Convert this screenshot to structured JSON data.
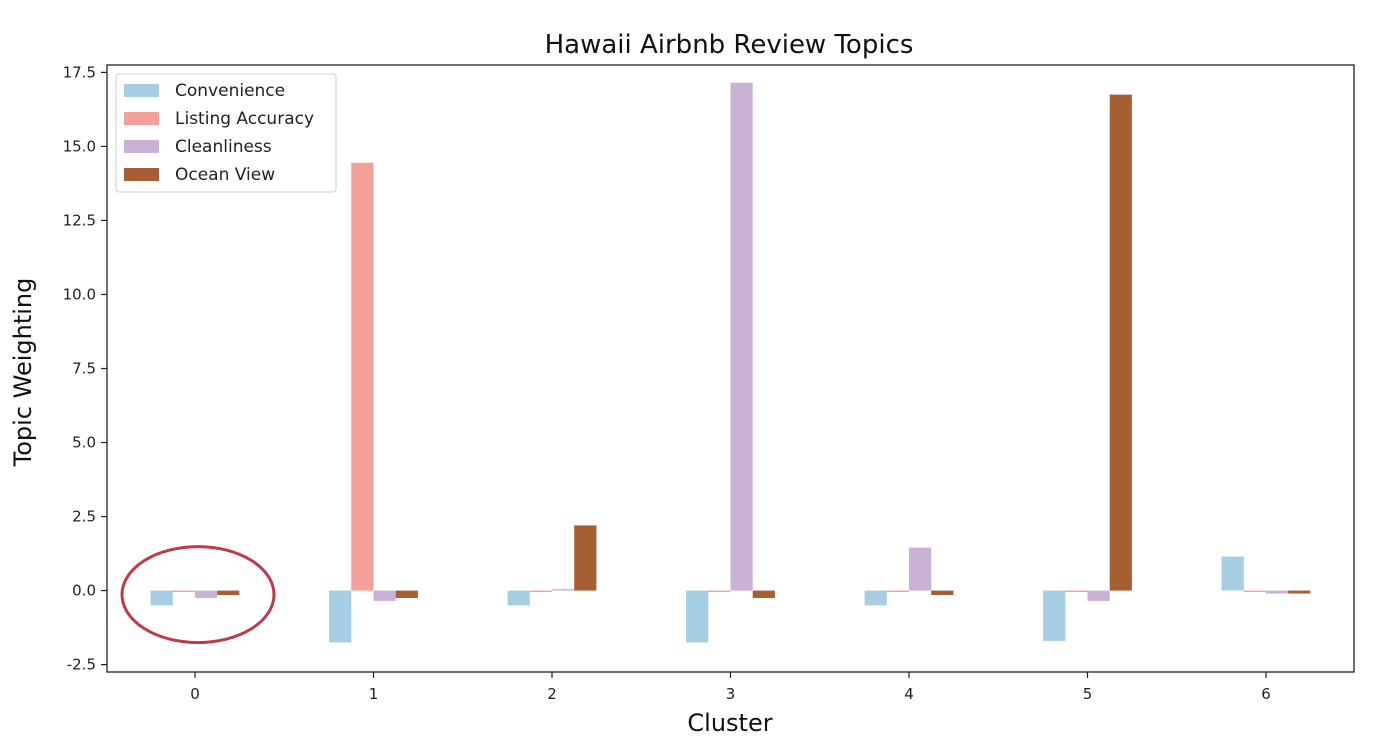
{
  "chart_data": {
    "type": "bar",
    "title": "Hawaii Airbnb Review Topics",
    "xlabel": "Cluster",
    "ylabel": "Topic Weighting",
    "categories": [
      "0",
      "1",
      "2",
      "3",
      "4",
      "5",
      "6"
    ],
    "series": [
      {
        "name": "Convenience",
        "color": "#a6cee3",
        "values": [
          -0.5,
          -1.75,
          -0.5,
          -1.75,
          -0.5,
          -1.7,
          1.15
        ]
      },
      {
        "name": "Listing Accuracy",
        "color": "#f4a09a",
        "values": [
          -0.05,
          14.45,
          -0.05,
          -0.05,
          -0.05,
          -0.05,
          -0.05
        ]
      },
      {
        "name": "Cleanliness",
        "color": "#cab2d6",
        "values": [
          -0.25,
          -0.35,
          0.05,
          17.15,
          1.45,
          -0.35,
          -0.1
        ]
      },
      {
        "name": "Ocean View",
        "color": "#a65e33",
        "values": [
          -0.15,
          -0.25,
          2.2,
          -0.25,
          -0.15,
          16.75,
          -0.1
        ]
      }
    ],
    "ylim": [
      -2.75,
      17.75
    ],
    "yticks": [
      "-2.5",
      "0.0",
      "2.5",
      "5.0",
      "7.5",
      "10.0",
      "12.5",
      "15.0",
      "17.5"
    ],
    "grid": false,
    "legend": "top-left",
    "annotation": {
      "shape": "ellipse",
      "target_category": "0",
      "color": "#c0394a"
    }
  }
}
